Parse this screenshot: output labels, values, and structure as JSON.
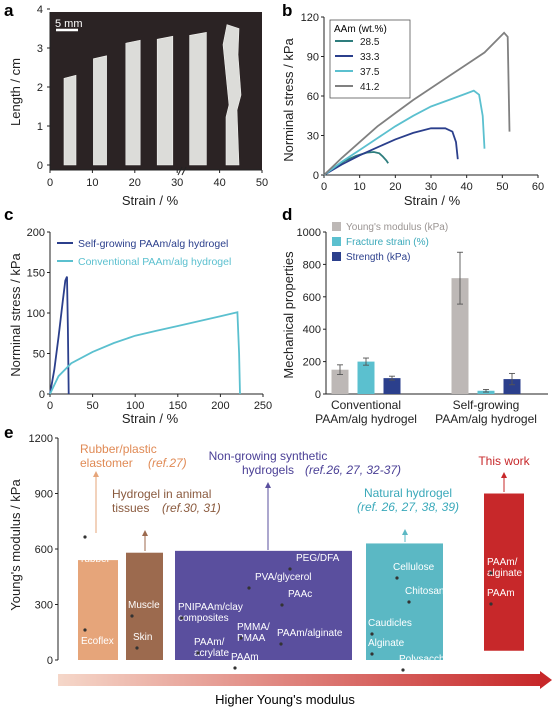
{
  "panel_labels": {
    "a": "a",
    "b": "b",
    "c": "c",
    "d": "d",
    "e": "e"
  },
  "chart_data": [
    {
      "panel": "a",
      "type": "image-strips",
      "scalebar": "5 mm",
      "xlabel": "Strain / %",
      "ylabel": "Length / cm",
      "x_ticks": [
        "0",
        "10",
        "20",
        "30",
        "40",
        "50"
      ],
      "y_ticks": [
        "0",
        "1",
        "2",
        "3",
        "4"
      ],
      "strips_strain": [
        0,
        10,
        20,
        30,
        40,
        50
      ],
      "strips_length_cm": [
        2.3,
        2.8,
        3.2,
        3.3,
        3.4,
        3.6
      ]
    },
    {
      "panel": "b",
      "type": "line",
      "xlabel": "Strain / %",
      "ylabel": "Norminal stress / kPa",
      "xlim": [
        0,
        60
      ],
      "ylim": [
        0,
        120
      ],
      "x_ticks": [
        0,
        10,
        20,
        30,
        40,
        50,
        60
      ],
      "y_ticks": [
        0,
        30,
        60,
        90,
        120
      ],
      "legend_title": "AAm (wt.%)",
      "legend_position": "top-left",
      "series": [
        {
          "name": "28.5",
          "color": "#2e7d7d",
          "x": [
            0,
            3,
            6,
            9,
            12,
            14,
            15.5,
            16.5,
            17.5,
            18
          ],
          "y": [
            0,
            6,
            11,
            14.5,
            17,
            17.5,
            16.5,
            14,
            11,
            9
          ]
        },
        {
          "name": "33.3",
          "color": "#2b3f8c",
          "x": [
            0,
            5,
            10,
            15,
            20,
            25,
            30,
            34,
            36,
            37,
            37.5
          ],
          "y": [
            0,
            8,
            15,
            21,
            27,
            32,
            35.5,
            35.5,
            33,
            25,
            12
          ]
        },
        {
          "name": "37.5",
          "color": "#5bc0cf",
          "x": [
            0,
            5,
            10,
            15,
            20,
            25,
            30,
            35,
            40,
            42,
            43.5,
            44.5,
            45
          ],
          "y": [
            0,
            10,
            19,
            28,
            37,
            45,
            52,
            57,
            62,
            64,
            61,
            45,
            20
          ]
        },
        {
          "name": "41.2",
          "color": "#808080",
          "x": [
            0,
            5,
            10,
            15,
            20,
            25,
            30,
            35,
            40,
            45,
            49,
            50.5,
            51.5,
            52
          ],
          "y": [
            0,
            13,
            25,
            37,
            47,
            57,
            66,
            75,
            84,
            93,
            104,
            108,
            105,
            33
          ]
        }
      ]
    },
    {
      "panel": "c",
      "type": "line",
      "xlabel": "Strain / %",
      "ylabel": "Norminal stress / kPa",
      "xlim": [
        0,
        250
      ],
      "ylim": [
        0,
        200
      ],
      "x_ticks": [
        0,
        50,
        100,
        150,
        200,
        250
      ],
      "y_ticks": [
        0,
        50,
        100,
        150,
        200
      ],
      "legend_position": "top-left",
      "series": [
        {
          "name": "Self-growing PAAm/alg hydrogel",
          "color": "#2b3f8c",
          "x": [
            0,
            5,
            10,
            15,
            18,
            20,
            21,
            22
          ],
          "y": [
            0,
            30,
            70,
            115,
            140,
            145,
            80,
            0
          ]
        },
        {
          "name": "Conventional PAAm/alg hydrogel",
          "color": "#5bc0cf",
          "x": [
            0,
            10,
            25,
            50,
            75,
            100,
            125,
            150,
            175,
            200,
            220,
            222,
            223
          ],
          "y": [
            0,
            22,
            38,
            52,
            63,
            72,
            78,
            84,
            90,
            96,
            101,
            50,
            0
          ]
        }
      ]
    },
    {
      "panel": "d",
      "type": "bar",
      "ylabel": "Mechanical properties",
      "ylim": [
        0,
        1000
      ],
      "y_ticks": [
        0,
        200,
        400,
        600,
        800,
        1000
      ],
      "categories": [
        "Conventional\nPAAm/alg hydrogel",
        "Self-growing\nPAAm/alg hydrogel"
      ],
      "legend_position": "top-left",
      "series": [
        {
          "name": "Young's modulus (kPa)",
          "color": "#bdb8b6",
          "values": [
            150,
            715
          ],
          "errors": [
            30,
            160
          ]
        },
        {
          "name": "Fracture strain (%)",
          "color": "#5bc0cf",
          "values": [
            200,
            20
          ],
          "errors": [
            22,
            8
          ]
        },
        {
          "name": "Strength (kPa)",
          "color": "#2b3f8c",
          "values": [
            98,
            92
          ],
          "errors": [
            12,
            35
          ]
        }
      ]
    },
    {
      "panel": "e",
      "type": "range-bar",
      "ylabel": "Young's modulus / kPa",
      "y_ticks": [
        0,
        300,
        600,
        900,
        1200
      ],
      "ylim": [
        0,
        1200
      ],
      "arrow_label": "Higher Young's modulus",
      "groups": [
        {
          "title": "Rubber/plastic\nelastomer",
          "ref": "(ref.27)",
          "color": "#e6a57a",
          "items": [
            "Silicon\nrubber",
            "Ecoflex"
          ],
          "range": [
            0,
            540
          ]
        },
        {
          "title": "Hydrogel in animal\ntissues",
          "ref": "(ref.30, 31)",
          "color": "#9c6a4e",
          "items": [
            "Muscle",
            "Skin"
          ],
          "range": [
            0,
            580
          ]
        },
        {
          "title": "Non-growing synthetic\nhydrogels",
          "ref": "(ref.26, 27, 32-37)",
          "color": "#5a4f9e",
          "items": [
            "PEG/DFA",
            "PVA/glycerol",
            "PAAc",
            "PNIPAAm/clay\ncomposites",
            "PMMA/\nPMAA",
            "PAAm/alginate",
            "PAAm/\nacrylate",
            "PAAm"
          ],
          "range": [
            0,
            590
          ]
        },
        {
          "title": "Natural hydrogel",
          "ref": "(ref. 26, 27, 38, 39)",
          "color": "#5bb8c4",
          "items": [
            "Cellulose",
            "Chitosan",
            "Caudicles",
            "Alginate",
            "Polysaccharide"
          ],
          "range": [
            0,
            630
          ]
        },
        {
          "title": "This work",
          "ref": "",
          "color": "#c7282a",
          "items": [
            "PAAm/\nalginate",
            "PAAm"
          ],
          "range": [
            50,
            900
          ]
        }
      ]
    }
  ]
}
